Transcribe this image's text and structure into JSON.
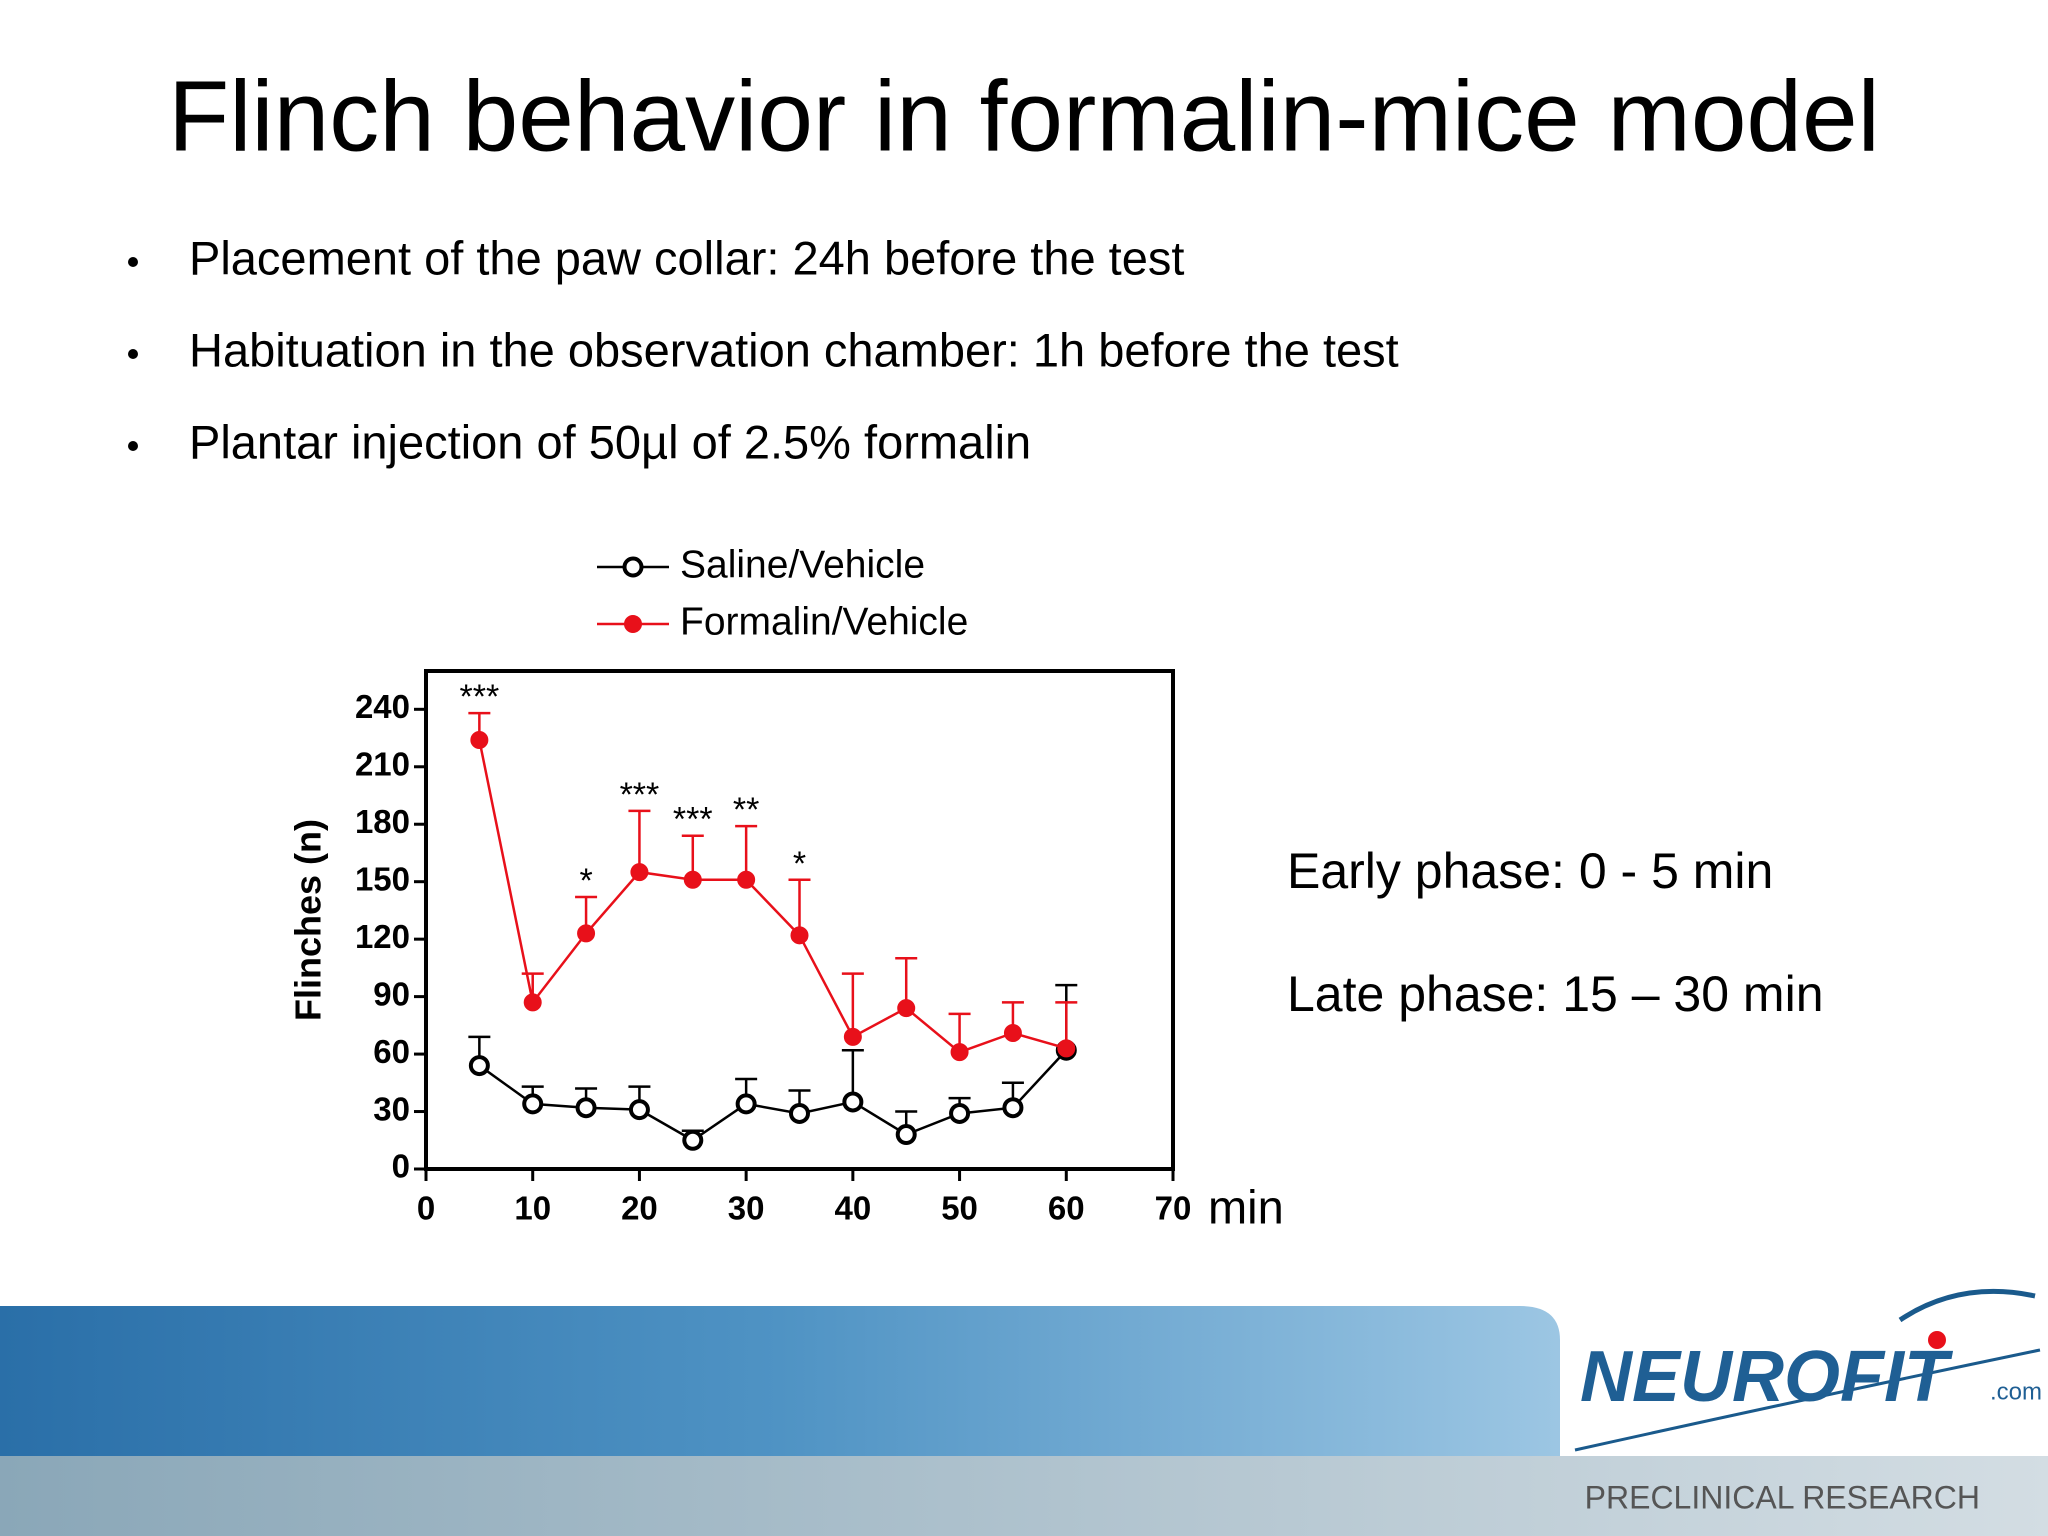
{
  "slide": {
    "title": "Flinch behavior in formalin-mice model",
    "bullets": [
      "Placement of the paw collar: 24h before the test",
      "Habituation in the observation chamber: 1h before the test",
      "Plantar injection of 50µl of 2.5% formalin"
    ],
    "notes": [
      "Early phase: 0 - 5 min",
      "Late phase: 15 – 30 min"
    ],
    "logo": "NEUROFIT",
    "logo_suffix": ".com",
    "tagline": "PRECLINICAL RESEARCH"
  },
  "chart_data": {
    "type": "line",
    "y_label": "Flinches (n)",
    "x_unit": "min",
    "x": [
      5,
      10,
      15,
      20,
      25,
      30,
      35,
      40,
      45,
      50,
      55,
      60
    ],
    "series": [
      {
        "name": "Saline/Vehicle",
        "color": "#000000",
        "marker": "open",
        "values": [
          54,
          34,
          32,
          31,
          15,
          34,
          29,
          35,
          18,
          29,
          32,
          62
        ],
        "errors": [
          15,
          9,
          10,
          12,
          5,
          13,
          12,
          27,
          12,
          8,
          13,
          34
        ]
      },
      {
        "name": "Formalin/Vehicle",
        "color": "#e8101a",
        "marker": "filled",
        "values": [
          224,
          87,
          123,
          155,
          151,
          151,
          122,
          69,
          84,
          61,
          71,
          63
        ],
        "errors": [
          14,
          15,
          19,
          32,
          23,
          28,
          29,
          33,
          26,
          20,
          16,
          24
        ]
      }
    ],
    "annotations": [
      {
        "x": 5,
        "text": "***"
      },
      {
        "x": 15,
        "text": "*"
      },
      {
        "x": 20,
        "text": "***"
      },
      {
        "x": 25,
        "text": "***"
      },
      {
        "x": 30,
        "text": "**"
      },
      {
        "x": 35,
        "text": "*"
      }
    ],
    "xlim": [
      0,
      70
    ],
    "ylim": [
      0,
      260
    ],
    "xticks": [
      0,
      10,
      20,
      30,
      40,
      50,
      60,
      70
    ],
    "yticks": [
      0,
      30,
      60,
      90,
      120,
      150,
      180,
      210,
      240
    ]
  }
}
